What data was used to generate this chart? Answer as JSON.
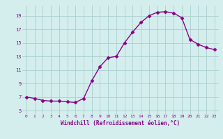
{
  "x": [
    0,
    1,
    2,
    3,
    4,
    5,
    6,
    7,
    8,
    9,
    10,
    11,
    12,
    13,
    14,
    15,
    16,
    17,
    18,
    19,
    20,
    21,
    22,
    23
  ],
  "y": [
    7.0,
    6.8,
    6.5,
    6.4,
    6.4,
    6.3,
    6.2,
    6.8,
    9.4,
    11.5,
    12.8,
    13.0,
    15.0,
    16.6,
    18.0,
    19.0,
    19.5,
    19.6,
    19.4,
    18.7,
    15.5,
    14.8,
    14.3,
    14.0
  ],
  "line_color": "#880088",
  "marker": "D",
  "marker_size": 2.5,
  "bg_color": "#d4eeed",
  "grid_color": "#aacfcd",
  "xlabel": "Windchill (Refroidissement éolien,°C)",
  "xlabel_color": "#880088",
  "tick_color": "#880088",
  "ylim": [
    4.5,
    20.5
  ],
  "xlim": [
    -0.5,
    23.5
  ],
  "yticks": [
    5,
    7,
    9,
    11,
    13,
    15,
    17,
    19
  ],
  "xticks": [
    0,
    1,
    2,
    3,
    4,
    5,
    6,
    7,
    8,
    9,
    10,
    11,
    12,
    13,
    14,
    15,
    16,
    17,
    18,
    19,
    20,
    21,
    22,
    23
  ]
}
